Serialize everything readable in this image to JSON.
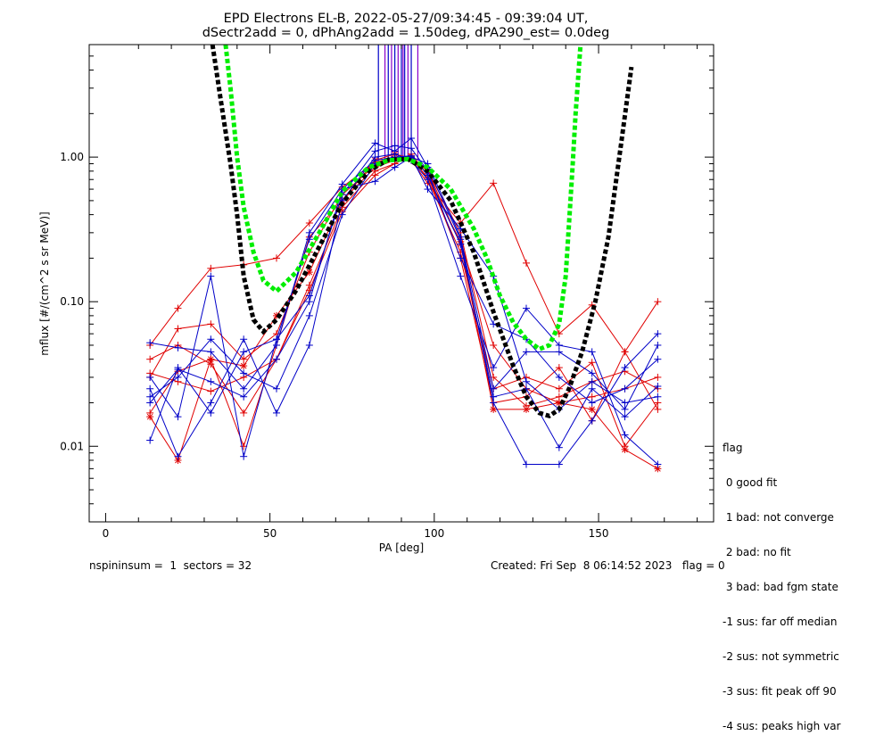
{
  "chart_data": {
    "type": "line",
    "title": "EPD Electrons EL-B, 2022-05-27/09:34:45 - 09:39:04 UT,",
    "subtitle": "dSectr2add = 0, dPhAng2add = 1.50deg, dPA290_est=    0.0deg",
    "xlabel": "PA [deg]",
    "ylabel": "mflux [#/(cm^2 s sr MeV)]",
    "xlim": [
      -5,
      185
    ],
    "ylim": [
      0.003,
      6.0
    ],
    "yscale": "log",
    "x_ticks": [
      0,
      50,
      100,
      150
    ],
    "y_ticks": [
      {
        "value": 0.01,
        "label": "0.01"
      },
      {
        "value": 0.1,
        "label": "0.10"
      },
      {
        "value": 1.0,
        "label": "1.00"
      }
    ],
    "colors": {
      "red": "#e00000",
      "blue": "#0000c8",
      "green": "#00ee00",
      "black": "#000000",
      "purple": "#8800cc"
    },
    "vertical_spikes_x": [
      83,
      85,
      86,
      87,
      88,
      89,
      90,
      90.5,
      91,
      92,
      93,
      95
    ],
    "series": [
      {
        "color": "red",
        "marker": "plus",
        "x": [
          13.5,
          22,
          32,
          42,
          52,
          62,
          72,
          82,
          88,
          93,
          98,
          108,
          118,
          128,
          138,
          148,
          158,
          168
        ],
        "y": [
          0.05,
          0.09,
          0.17,
          0.18,
          0.2,
          0.35,
          0.62,
          0.92,
          1.0,
          0.98,
          0.72,
          0.26,
          0.05,
          0.025,
          0.02,
          0.022,
          0.025,
          0.03
        ]
      },
      {
        "color": "red",
        "marker": "plus",
        "x": [
          13.5,
          22,
          32,
          42,
          52,
          62,
          72,
          82,
          88,
          93,
          98,
          108,
          118,
          128,
          138,
          148,
          158,
          168
        ],
        "y": [
          0.03,
          0.065,
          0.07,
          0.04,
          0.06,
          0.22,
          0.55,
          0.88,
          0.98,
          0.95,
          0.66,
          0.35,
          0.66,
          0.185,
          0.06,
          0.095,
          0.045,
          0.1
        ]
      },
      {
        "color": "red",
        "marker": "plus",
        "x": [
          13.5,
          22,
          32,
          42,
          52,
          62,
          72,
          82,
          88,
          93,
          98,
          108,
          118,
          128,
          138,
          148,
          158,
          168
        ],
        "y": [
          0.04,
          0.05,
          0.037,
          0.017,
          0.04,
          0.13,
          0.45,
          0.8,
          0.9,
          1.05,
          0.75,
          0.2,
          0.02,
          0.022,
          0.035,
          0.015,
          0.045,
          0.018
        ]
      },
      {
        "color": "red",
        "marker": "plus",
        "x": [
          13.5,
          22,
          32,
          42,
          52,
          62,
          72,
          82,
          88,
          93,
          98,
          108,
          118,
          128,
          138,
          148,
          158,
          168
        ],
        "y": [
          0.017,
          0.033,
          0.04,
          0.01,
          0.05,
          0.28,
          0.5,
          0.85,
          0.95,
          1.0,
          0.8,
          0.3,
          0.03,
          0.019,
          0.022,
          0.028,
          0.033,
          0.025
        ]
      },
      {
        "color": "red",
        "marker": "star",
        "x": [
          13.5,
          22,
          32,
          42,
          52,
          62,
          72,
          82,
          88,
          93,
          98,
          108,
          118,
          128,
          138,
          148,
          158,
          168
        ],
        "y": [
          0.016,
          0.008,
          0.04,
          0.036,
          0.08,
          0.16,
          0.5,
          0.95,
          1.05,
          0.98,
          0.8,
          0.25,
          0.018,
          0.018,
          0.02,
          0.018,
          0.0095,
          0.007
        ]
      },
      {
        "color": "red",
        "marker": "plus",
        "x": [
          13.5,
          22,
          32,
          42,
          52,
          62,
          72,
          82,
          88,
          93,
          98,
          108,
          118,
          128,
          138,
          148,
          158,
          168
        ],
        "y": [
          0.032,
          0.028,
          0.024,
          0.03,
          0.04,
          0.12,
          0.42,
          0.75,
          0.9,
          1.02,
          0.7,
          0.22,
          0.025,
          0.03,
          0.025,
          0.038,
          0.01,
          0.02
        ]
      },
      {
        "color": "blue",
        "marker": "plus",
        "x": [
          13.5,
          22,
          32,
          42,
          52,
          62,
          72,
          82,
          88,
          93,
          98,
          108,
          118,
          128,
          138,
          148,
          158,
          168
        ],
        "y": [
          0.052,
          0.048,
          0.045,
          0.025,
          0.05,
          0.3,
          0.65,
          1.25,
          1.1,
          1.35,
          0.85,
          0.27,
          0.02,
          0.0075,
          0.0075,
          0.015,
          0.035,
          0.06
        ]
      },
      {
        "color": "blue",
        "marker": "plus",
        "x": [
          13.5,
          22,
          32,
          42,
          52,
          62,
          72,
          82,
          88,
          93,
          98,
          108,
          118,
          128,
          138,
          148,
          158,
          168
        ],
        "y": [
          0.011,
          0.035,
          0.017,
          0.045,
          0.055,
          0.11,
          0.55,
          1.1,
          1.2,
          1.15,
          0.8,
          0.2,
          0.07,
          0.055,
          0.03,
          0.02,
          0.025,
          0.04
        ]
      },
      {
        "color": "blue",
        "marker": "plus",
        "x": [
          13.5,
          22,
          32,
          42,
          52,
          62,
          72,
          82,
          88,
          93,
          98,
          108,
          118,
          128,
          138,
          148,
          158,
          168
        ],
        "y": [
          0.025,
          0.0085,
          0.02,
          0.055,
          0.017,
          0.05,
          0.5,
          1.0,
          1.05,
          0.95,
          0.7,
          0.15,
          0.035,
          0.09,
          0.05,
          0.045,
          0.012,
          0.0075
        ]
      },
      {
        "color": "blue",
        "marker": "plus",
        "x": [
          13.5,
          22,
          32,
          42,
          52,
          62,
          72,
          82,
          88,
          93,
          98,
          108,
          118,
          128,
          138,
          148,
          158,
          168
        ],
        "y": [
          0.022,
          0.03,
          0.055,
          0.032,
          0.025,
          0.08,
          0.4,
          0.9,
          1.0,
          1.02,
          0.75,
          0.25,
          0.022,
          0.025,
          0.0098,
          0.025,
          0.016,
          0.026
        ]
      },
      {
        "color": "blue",
        "marker": "plus",
        "x": [
          13.5,
          22,
          32,
          42,
          52,
          62,
          72,
          82,
          88,
          93,
          98,
          108,
          118,
          128,
          138,
          148,
          158,
          168
        ],
        "y": [
          0.03,
          0.016,
          0.15,
          0.0085,
          0.055,
          0.27,
          0.6,
          0.95,
          1.0,
          1.0,
          0.6,
          0.32,
          0.15,
          0.028,
          0.018,
          0.028,
          0.02,
          0.022
        ]
      },
      {
        "color": "blue",
        "marker": "plus",
        "x": [
          13.5,
          22,
          32,
          42,
          52,
          62,
          72,
          82,
          88,
          93,
          98,
          108,
          118,
          128,
          138,
          148,
          158,
          168
        ],
        "y": [
          0.02,
          0.034,
          0.028,
          0.022,
          0.04,
          0.1,
          0.6,
          0.68,
          0.85,
          1.0,
          0.9,
          0.28,
          0.025,
          0.045,
          0.045,
          0.032,
          0.018,
          0.05
        ]
      }
    ],
    "fits": [
      {
        "color": "black",
        "x": [
          32.5,
          35,
          38,
          40,
          42,
          45,
          48,
          52,
          58,
          65,
          72,
          80,
          86,
          92,
          98,
          105,
          112,
          118,
          124,
          128,
          132,
          135,
          138,
          141,
          145,
          149,
          153,
          157,
          160
        ],
        "y": [
          6.0,
          2.5,
          0.9,
          0.4,
          0.15,
          0.075,
          0.062,
          0.075,
          0.12,
          0.24,
          0.48,
          0.8,
          0.96,
          0.97,
          0.8,
          0.5,
          0.22,
          0.085,
          0.036,
          0.022,
          0.017,
          0.0162,
          0.018,
          0.025,
          0.045,
          0.1,
          0.28,
          1.3,
          4.2
        ]
      },
      {
        "color": "green",
        "x": [
          36.5,
          38,
          40,
          42,
          45,
          48,
          52,
          58,
          65,
          72,
          80,
          86,
          92,
          98,
          105,
          112,
          116,
          120,
          124,
          128,
          132,
          135,
          138,
          140,
          142,
          143,
          144.5
        ],
        "y": [
          6.0,
          3.0,
          1.0,
          0.45,
          0.22,
          0.14,
          0.118,
          0.16,
          0.3,
          0.58,
          0.85,
          0.95,
          0.97,
          0.85,
          0.6,
          0.32,
          0.2,
          0.11,
          0.072,
          0.055,
          0.047,
          0.05,
          0.07,
          0.15,
          0.8,
          2.0,
          6.0
        ]
      }
    ],
    "legend": {
      "placement": "right-bottom",
      "title": "flag",
      "entries": [
        " 0 good fit",
        " 1 bad: not converge",
        " 2 bad: no fit",
        " 3 bad: bad fgm state",
        "-1 sus: far off median",
        "-2 sus: not symmetric",
        "-3 sus: fit peak off 90",
        "-4 sus: peaks high var"
      ]
    }
  },
  "footer": {
    "left": "nspininsum =  1  sectors = 32",
    "right": "Created: Fri Sep  8 06:14:52 2023   flag = 0"
  }
}
